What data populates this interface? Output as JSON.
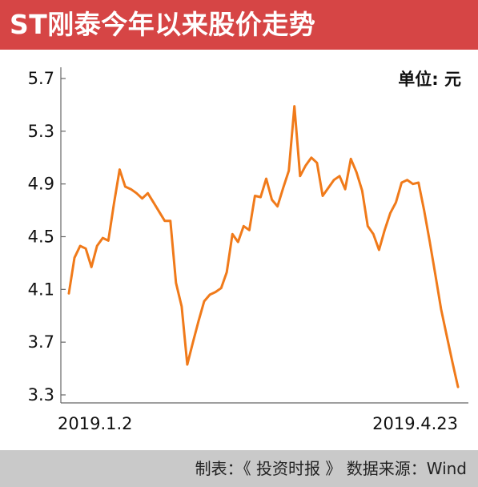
{
  "header": {
    "title": "ST刚泰今年以来股价走势"
  },
  "chart_data": {
    "type": "line",
    "unit_label": "单位: 元",
    "ylim": [
      3.3,
      5.7
    ],
    "yticks": [
      "5.7",
      "5.3",
      "4.9",
      "4.5",
      "4.1",
      "3.7",
      "3.3"
    ],
    "x_start_label": "2019.1.2",
    "x_end_label": "2019.4.23",
    "line_color": "#f07a1a",
    "grid": false,
    "values": [
      4.07,
      4.34,
      4.43,
      4.41,
      4.27,
      4.43,
      4.49,
      4.47,
      4.75,
      5.01,
      4.88,
      4.86,
      4.83,
      4.79,
      4.83,
      4.76,
      4.69,
      4.62,
      4.62,
      4.15,
      3.97,
      3.53,
      3.7,
      3.86,
      4.01,
      4.06,
      4.08,
      4.11,
      4.23,
      4.52,
      4.46,
      4.58,
      4.55,
      4.81,
      4.8,
      4.94,
      4.78,
      4.73,
      4.87,
      5.0,
      5.49,
      4.96,
      5.04,
      5.1,
      5.06,
      4.81,
      4.87,
      4.93,
      4.96,
      4.86,
      5.09,
      4.99,
      4.85,
      4.58,
      4.52,
      4.4,
      4.55,
      4.68,
      4.76,
      4.91,
      4.93,
      4.9,
      4.91,
      4.7,
      4.46,
      4.21,
      3.95,
      3.75,
      3.55,
      3.36
    ]
  },
  "footer": {
    "credit": "制表：《 投资时报 》  数据来源：Wind"
  }
}
